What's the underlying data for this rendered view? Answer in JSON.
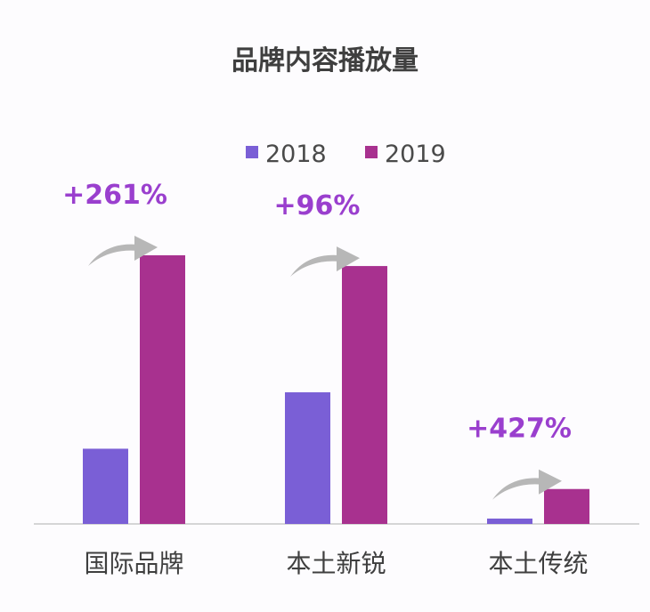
{
  "chart_data": {
    "type": "bar",
    "title": "品牌内容播放量",
    "categories": [
      "国际品牌",
      "本土新锐",
      "本土传统"
    ],
    "series": [
      {
        "name": "2018",
        "color": "#7a5fd6",
        "values": [
          0.28,
          0.49,
          0.02
        ]
      },
      {
        "name": "2019",
        "color": "#a8318f",
        "values": [
          1.0,
          0.96,
          0.13
        ]
      }
    ],
    "growth_labels": [
      "+261%",
      "+96%",
      "+427%"
    ],
    "growth_color": "#9a3fce",
    "arrow_color": "#b7b7b7",
    "ylim": [
      0,
      1.0
    ],
    "grid": false,
    "legend_position": "top-center",
    "value_unit": "relative (no axis shown)"
  }
}
